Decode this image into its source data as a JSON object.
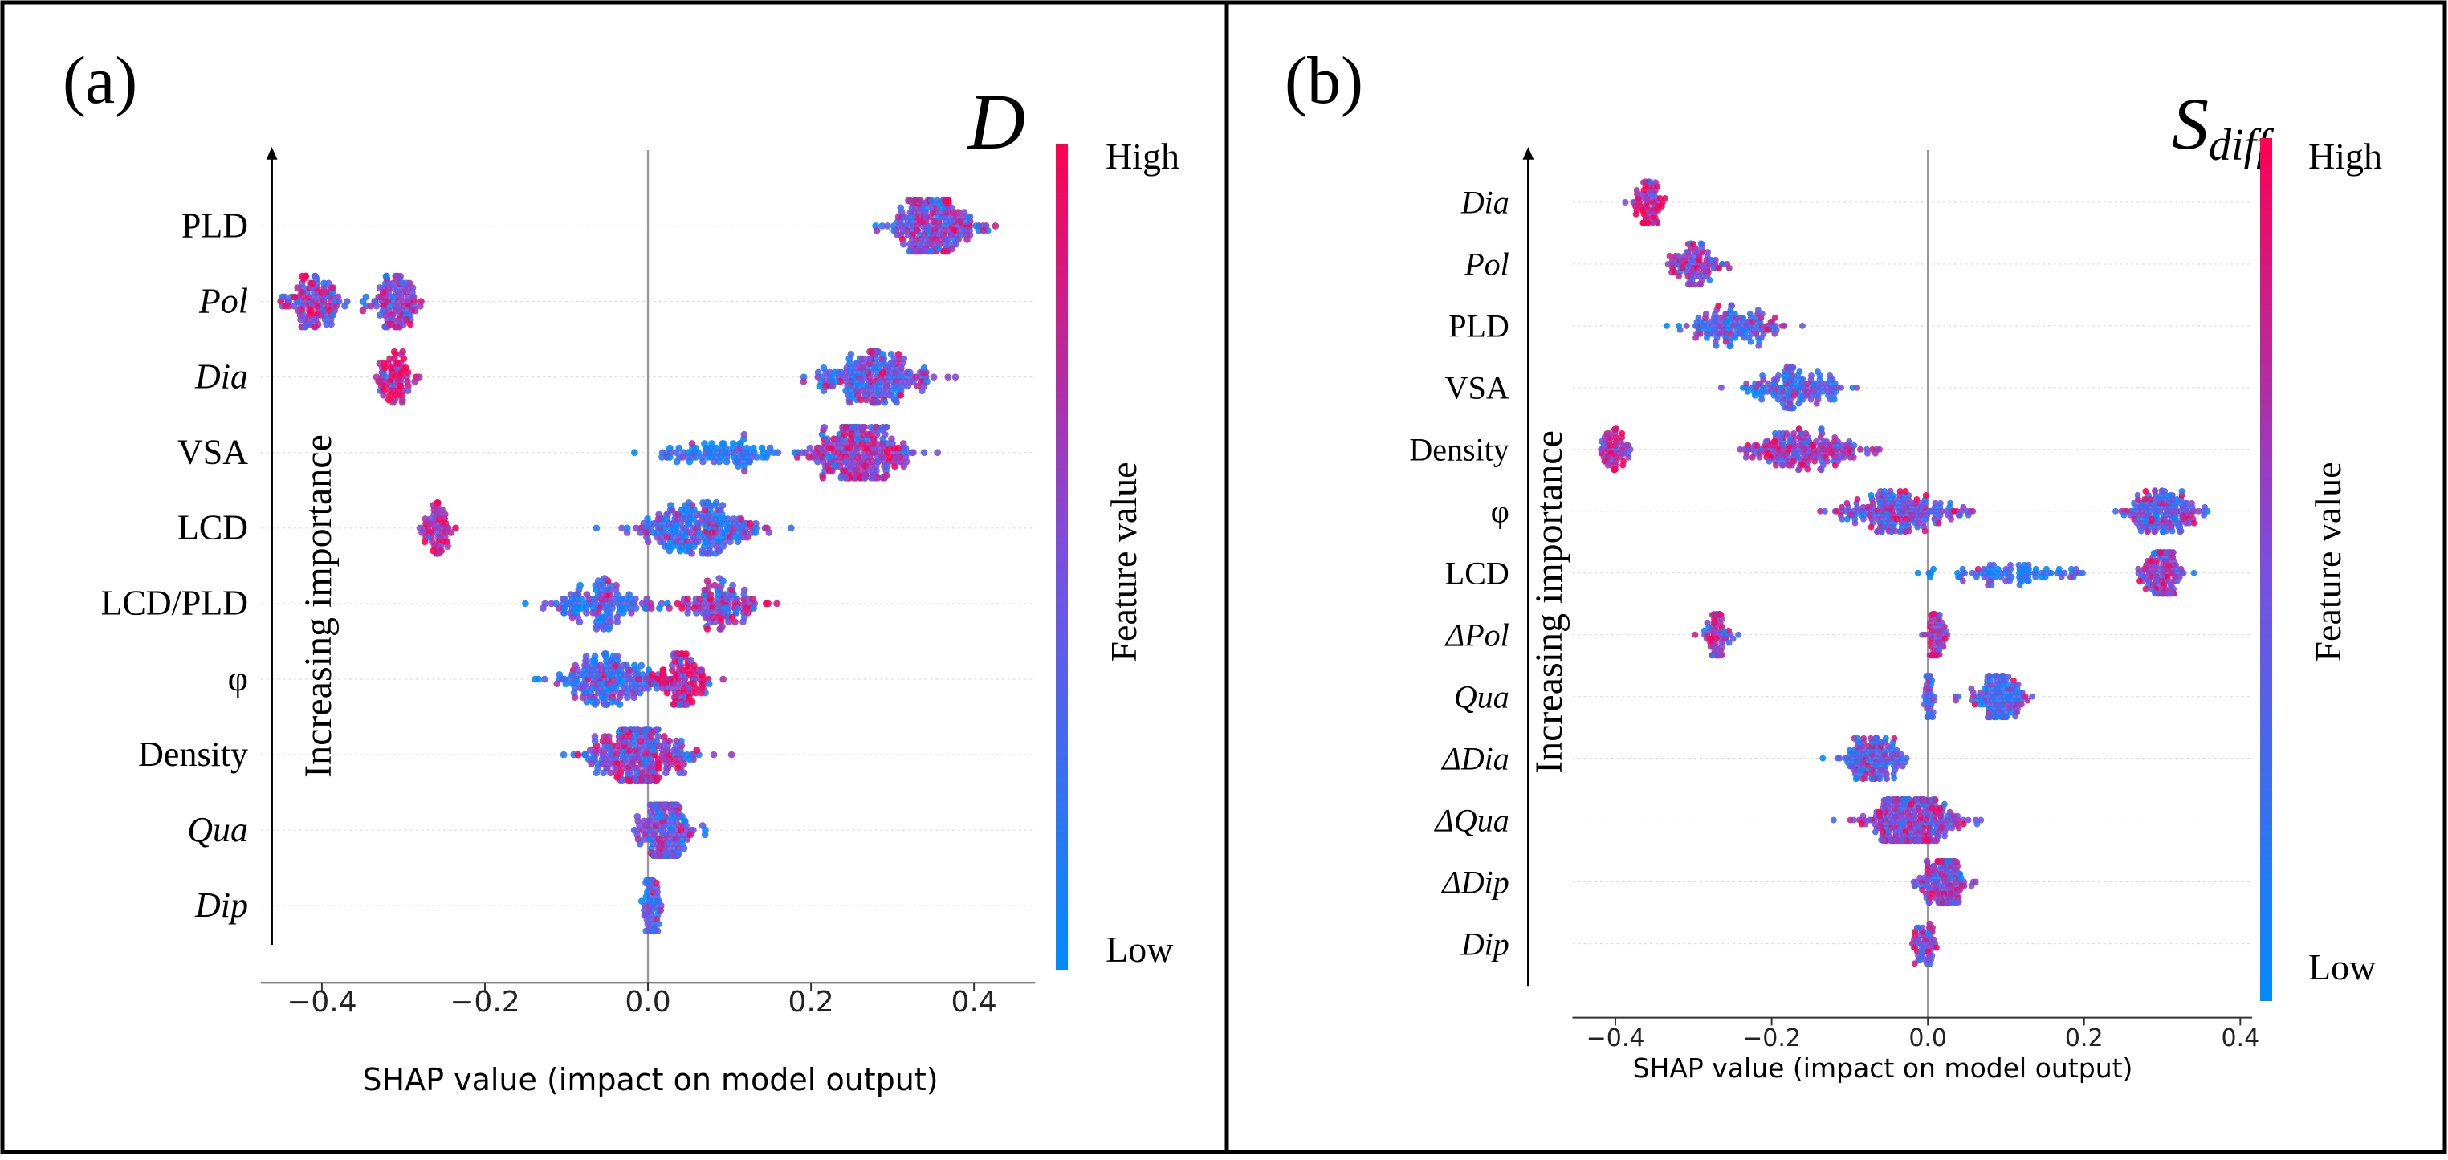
{
  "chart_data": [
    {
      "panel": "(a)",
      "type": "scatter",
      "subtype": "shap-beeswarm",
      "title": "D",
      "xlabel": "SHAP value (impact on model output)",
      "ylabel": "Increasing importance",
      "xticks": [
        -0.4,
        -0.2,
        0.0,
        0.2,
        0.4
      ],
      "xtick_labels": [
        "−0.4",
        "−0.2",
        "0.0",
        "0.2",
        "0.4"
      ],
      "xlim": [
        -0.475,
        0.475
      ],
      "colorbar": {
        "label": "Feature value",
        "high": "High",
        "low": "Low",
        "high_color": "#ff0052",
        "low_color": "#008bfb"
      },
      "features": [
        {
          "label": "PLD",
          "italic": false,
          "clusters": [
            {
              "center": 0.35,
              "spread": 0.08,
              "count": 220,
              "value_bias": 0.55
            }
          ]
        },
        {
          "label": "Pol",
          "italic": true,
          "clusters": [
            {
              "center": -0.41,
              "spread": 0.05,
              "count": 110,
              "value_bias": 0.6
            },
            {
              "center": -0.31,
              "spread": 0.05,
              "count": 110,
              "value_bias": 0.55
            }
          ]
        },
        {
          "label": "Dia",
          "italic": true,
          "clusters": [
            {
              "center": -0.31,
              "spread": 0.03,
              "count": 70,
              "value_bias": 0.8
            },
            {
              "center": 0.28,
              "spread": 0.09,
              "count": 210,
              "value_bias": 0.4
            }
          ]
        },
        {
          "label": "VSA",
          "italic": false,
          "clusters": [
            {
              "center": 0.09,
              "spread": 0.1,
              "count": 90,
              "value_bias": 0.15
            },
            {
              "center": 0.26,
              "spread": 0.09,
              "count": 240,
              "value_bias": 0.6
            }
          ]
        },
        {
          "label": "LCD",
          "italic": false,
          "clusters": [
            {
              "center": -0.26,
              "spread": 0.025,
              "count": 60,
              "value_bias": 0.7
            },
            {
              "center": 0.06,
              "spread": 0.11,
              "count": 220,
              "value_bias": 0.3
            }
          ]
        },
        {
          "label": "LCD/PLD",
          "italic": false,
          "clusters": [
            {
              "center": -0.06,
              "spread": 0.09,
              "count": 130,
              "value_bias": 0.35
            },
            {
              "center": 0.09,
              "spread": 0.07,
              "count": 110,
              "value_bias": 0.6
            }
          ]
        },
        {
          "label": "φ",
          "italic": false,
          "clusters": [
            {
              "center": -0.05,
              "spread": 0.09,
              "count": 180,
              "value_bias": 0.3
            },
            {
              "center": 0.04,
              "spread": 0.05,
              "count": 110,
              "value_bias": 0.75
            }
          ]
        },
        {
          "label": "Density",
          "italic": false,
          "clusters": [
            {
              "center": -0.01,
              "spread": 0.1,
              "count": 260,
              "value_bias": 0.55
            }
          ]
        },
        {
          "label": "Qua",
          "italic": true,
          "clusters": [
            {
              "center": 0.02,
              "spread": 0.05,
              "count": 170,
              "value_bias": 0.45
            }
          ]
        },
        {
          "label": "Dip",
          "italic": true,
          "clusters": [
            {
              "center": 0.005,
              "spread": 0.02,
              "count": 55,
              "value_bias": 0.4
            }
          ]
        }
      ]
    },
    {
      "panel": "(b)",
      "type": "scatter",
      "subtype": "shap-beeswarm",
      "title": "S",
      "title_sub": "diff",
      "xlabel": "SHAP value (impact on model output)",
      "ylabel": "Increasing importance",
      "xticks": [
        -0.4,
        -0.2,
        0.0,
        0.2,
        0.4
      ],
      "xtick_labels": [
        "−0.4",
        "−0.2",
        "0.0",
        "0.2",
        "0.4"
      ],
      "xlim": [
        -0.455,
        0.415
      ],
      "colorbar": {
        "label": "Feature value",
        "high": "High",
        "low": "Low",
        "high_color": "#ff0052",
        "low_color": "#008bfb"
      },
      "features": [
        {
          "label": "Dia",
          "italic": true,
          "clusters": [
            {
              "center": -0.36,
              "spread": 0.03,
              "count": 75,
              "value_bias": 0.8
            }
          ]
        },
        {
          "label": "Pol",
          "italic": true,
          "clusters": [
            {
              "center": -0.3,
              "spread": 0.05,
              "count": 95,
              "value_bias": 0.55
            }
          ]
        },
        {
          "label": "PLD",
          "italic": false,
          "clusters": [
            {
              "center": -0.25,
              "spread": 0.09,
              "count": 140,
              "value_bias": 0.35
            }
          ]
        },
        {
          "label": "VSA",
          "italic": false,
          "clusters": [
            {
              "center": -0.17,
              "spread": 0.1,
              "count": 150,
              "value_bias": 0.35
            }
          ]
        },
        {
          "label": "Density",
          "italic": false,
          "clusters": [
            {
              "center": -0.4,
              "spread": 0.03,
              "count": 60,
              "value_bias": 0.8
            },
            {
              "center": -0.16,
              "spread": 0.11,
              "count": 190,
              "value_bias": 0.65
            }
          ]
        },
        {
          "label": "φ",
          "italic": false,
          "clusters": [
            {
              "center": -0.04,
              "spread": 0.1,
              "count": 200,
              "value_bias": 0.45
            },
            {
              "center": 0.3,
              "spread": 0.07,
              "count": 160,
              "value_bias": 0.4
            }
          ]
        },
        {
          "label": "LCD",
          "italic": false,
          "clusters": [
            {
              "center": 0.1,
              "spread": 0.13,
              "count": 90,
              "value_bias": 0.2
            },
            {
              "center": 0.3,
              "spread": 0.04,
              "count": 150,
              "value_bias": 0.6
            }
          ]
        },
        {
          "label": "ΔPol",
          "italic": true,
          "clusters": [
            {
              "center": -0.27,
              "spread": 0.025,
              "count": 70,
              "value_bias": 0.65
            },
            {
              "center": 0.01,
              "spread": 0.02,
              "count": 60,
              "value_bias": 0.7
            }
          ]
        },
        {
          "label": "Qua",
          "italic": true,
          "clusters": [
            {
              "center": 0.0,
              "spread": 0.01,
              "count": 35,
              "value_bias": 0.4
            },
            {
              "center": 0.09,
              "spread": 0.06,
              "count": 140,
              "value_bias": 0.35
            }
          ]
        },
        {
          "label": "ΔDia",
          "italic": true,
          "clusters": [
            {
              "center": -0.07,
              "spread": 0.06,
              "count": 140,
              "value_bias": 0.4
            }
          ]
        },
        {
          "label": "ΔQua",
          "italic": true,
          "clusters": [
            {
              "center": -0.02,
              "spread": 0.09,
              "count": 290,
              "value_bias": 0.55
            }
          ]
        },
        {
          "label": "ΔDip",
          "italic": true,
          "clusters": [
            {
              "center": 0.02,
              "spread": 0.04,
              "count": 170,
              "value_bias": 0.5
            }
          ]
        },
        {
          "label": "Dip",
          "italic": true,
          "clusters": [
            {
              "center": -0.005,
              "spread": 0.02,
              "count": 55,
              "value_bias": 0.5
            }
          ]
        }
      ]
    }
  ]
}
